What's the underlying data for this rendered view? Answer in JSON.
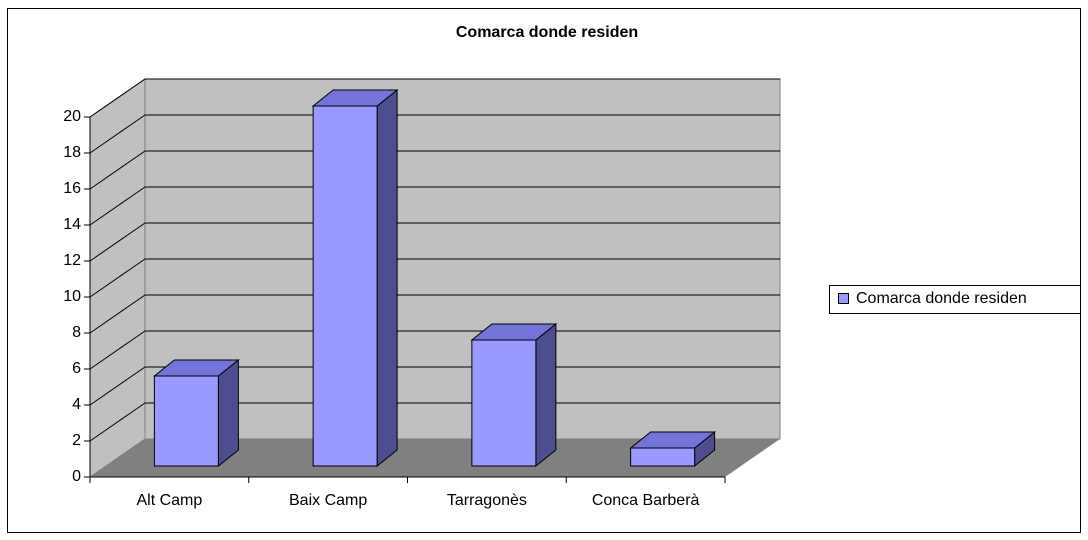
{
  "chart_data": {
    "type": "bar3d",
    "title": "Comarca donde residen",
    "categories": [
      "Alt Camp",
      "Baix Camp",
      "Tarragonès",
      "Conca Barberà"
    ],
    "series": [
      {
        "name": "Comarca donde residen",
        "color": "#9999ff",
        "values": [
          5,
          20,
          7,
          1
        ]
      }
    ],
    "ylim": [
      0,
      20
    ],
    "yticks": [
      0,
      2,
      4,
      6,
      8,
      10,
      12,
      14,
      16,
      18,
      20
    ],
    "grid": true,
    "legend": "right"
  }
}
